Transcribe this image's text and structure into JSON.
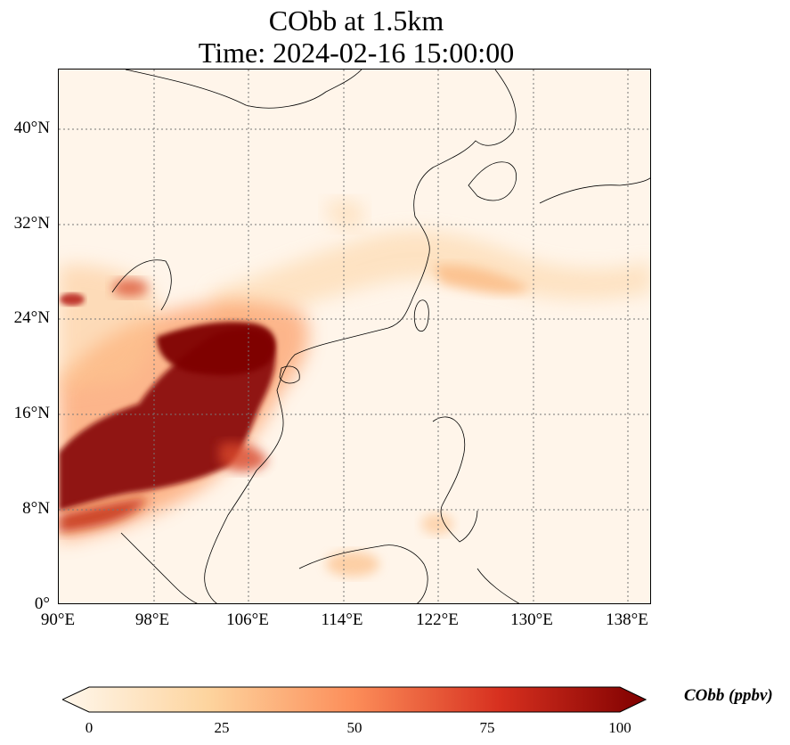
{
  "title": {
    "line1": "CObb at 1.5km",
    "line2": "Time: 2024-02-16 15:00:00"
  },
  "map": {
    "lon_range": [
      90,
      140
    ],
    "lat_range": [
      0,
      45
    ],
    "lon_ticks": [
      "90°E",
      "98°E",
      "106°E",
      "114°E",
      "122°E",
      "130°E",
      "138°E"
    ],
    "lat_ticks": [
      "0°",
      "8°N",
      "16°N",
      "24°N",
      "32°N",
      "40°N"
    ],
    "gridlines": true
  },
  "colorbar": {
    "label": "CObb (ppbv)",
    "ticks": [
      "0",
      "25",
      "50",
      "75",
      "100"
    ],
    "range": [
      0,
      100
    ],
    "colormap": "OrRd",
    "colors": [
      "#fff7ec",
      "#fdd49e",
      "#fc8d59",
      "#d7301f",
      "#7f0000"
    ]
  }
}
